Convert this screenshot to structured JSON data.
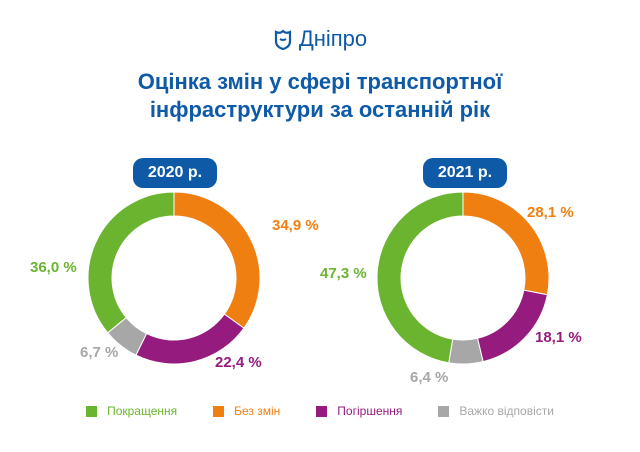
{
  "header": {
    "logo_text": "Дніпро",
    "title_line1": "Оцінка змін у сфері транспортної",
    "title_line2": "інфраструктури за останній рік"
  },
  "colors": {
    "brand": "#0e5aa7",
    "Покращення": "#6ab42f",
    "Без змін": "#f07f11",
    "Погіршення": "#951c7e",
    "Важко відповісти": "#a7a7a7"
  },
  "chart_data": [
    {
      "type": "pie",
      "title": "2020 р.",
      "categories": [
        "Без змін",
        "Погіршення",
        "Важко відповісти",
        "Покращення"
      ],
      "values": [
        34.9,
        22.4,
        6.7,
        36.0
      ],
      "labels": [
        "34,9 %",
        "22,4 %",
        "6,7 %",
        "36,0 %"
      ]
    },
    {
      "type": "pie",
      "title": "2021 р.",
      "categories": [
        "Без змін",
        "Погіршення",
        "Важко відповісти",
        "Покращення"
      ],
      "values": [
        28.1,
        18.1,
        6.4,
        47.3
      ],
      "labels": [
        "28,1 %",
        "18,1 %",
        "6,4 %",
        "47,3 %"
      ]
    }
  ],
  "legend": [
    {
      "label": "Покращення",
      "color": "#6ab42f"
    },
    {
      "label": "Без змін",
      "color": "#f07f11"
    },
    {
      "label": "Погіршення",
      "color": "#951c7e"
    },
    {
      "label": "Важко відповісти",
      "color": "#a7a7a7"
    }
  ]
}
